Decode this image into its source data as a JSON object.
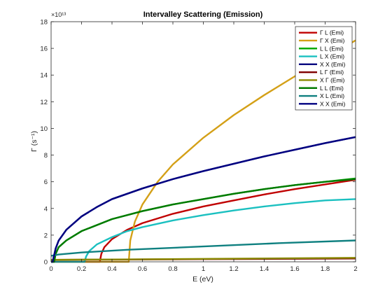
{
  "chart_data": {
    "type": "line",
    "title": "Intervalley Scattering (Emission)",
    "xlabel": "E (eV)",
    "ylabel": "Γ (s⁻¹)",
    "y_exponent_label": "×10¹³",
    "xlim": [
      0,
      2
    ],
    "ylim": [
      0,
      18
    ],
    "x_ticks": [
      0,
      0.2,
      0.4,
      0.6,
      0.8,
      1,
      1.2,
      1.4,
      1.6,
      1.8,
      2
    ],
    "x_tick_labels": [
      "0",
      "0.2",
      "0.4",
      "0.6",
      "0.8",
      "1",
      "1.2",
      "1.4",
      "1.6",
      "1.8",
      "2"
    ],
    "y_ticks": [
      0,
      2,
      4,
      6,
      8,
      10,
      12,
      14,
      16,
      18
    ],
    "y_tick_labels": [
      "0",
      "2",
      "4",
      "6",
      "8",
      "10",
      "12",
      "14",
      "16",
      "18"
    ],
    "grid": false,
    "legend_position": "top-right",
    "series": [
      {
        "name": "Γ L (Emi)",
        "color": "#c00000",
        "points": [
          [
            0,
            0
          ],
          [
            0.3,
            0
          ],
          [
            0.32,
            0
          ],
          [
            0.33,
            0.6
          ],
          [
            0.35,
            1.1
          ],
          [
            0.4,
            1.7
          ],
          [
            0.5,
            2.4
          ],
          [
            0.6,
            2.9
          ],
          [
            0.8,
            3.6
          ],
          [
            1.0,
            4.15
          ],
          [
            1.2,
            4.6
          ],
          [
            1.4,
            5.05
          ],
          [
            1.6,
            5.45
          ],
          [
            1.8,
            5.8
          ],
          [
            2.0,
            6.15
          ]
        ]
      },
      {
        "name": "Γ X (Emi)",
        "color": "#d4a017",
        "points": [
          [
            0,
            0
          ],
          [
            0.5,
            0
          ],
          [
            0.51,
            0
          ],
          [
            0.52,
            1.6
          ],
          [
            0.55,
            3.0
          ],
          [
            0.6,
            4.3
          ],
          [
            0.7,
            6.0
          ],
          [
            0.8,
            7.3
          ],
          [
            1.0,
            9.3
          ],
          [
            1.2,
            11.0
          ],
          [
            1.4,
            12.5
          ],
          [
            1.6,
            13.9
          ],
          [
            1.8,
            15.3
          ],
          [
            2.0,
            16.6
          ]
        ]
      },
      {
        "name": "L L (Emi)",
        "color": "#00aa00",
        "points": [
          [
            0,
            0
          ],
          [
            0.02,
            0
          ],
          [
            0.03,
            0.6
          ],
          [
            0.05,
            1.1
          ],
          [
            0.1,
            1.6
          ],
          [
            0.2,
            2.3
          ],
          [
            0.4,
            3.2
          ],
          [
            0.6,
            3.8
          ],
          [
            0.8,
            4.3
          ],
          [
            1.0,
            4.7
          ],
          [
            1.2,
            5.1
          ],
          [
            1.4,
            5.45
          ],
          [
            1.6,
            5.75
          ],
          [
            1.8,
            6.0
          ],
          [
            2.0,
            6.25
          ]
        ]
      },
      {
        "name": "L X (Emi)",
        "color": "#1bc0c0",
        "points": [
          [
            0,
            0
          ],
          [
            0.2,
            0
          ],
          [
            0.22,
            0
          ],
          [
            0.23,
            0.4
          ],
          [
            0.25,
            0.8
          ],
          [
            0.3,
            1.3
          ],
          [
            0.4,
            1.85
          ],
          [
            0.5,
            2.3
          ],
          [
            0.6,
            2.6
          ],
          [
            0.8,
            3.1
          ],
          [
            1.0,
            3.5
          ],
          [
            1.2,
            3.85
          ],
          [
            1.4,
            4.15
          ],
          [
            1.6,
            4.4
          ],
          [
            1.8,
            4.6
          ],
          [
            2.0,
            4.7
          ]
        ]
      },
      {
        "name": "X X (Emi)",
        "color": "#00007f",
        "points": [
          [
            0,
            0
          ],
          [
            0.01,
            0
          ],
          [
            0.03,
            1.0
          ],
          [
            0.05,
            1.6
          ],
          [
            0.1,
            2.4
          ],
          [
            0.2,
            3.4
          ],
          [
            0.3,
            4.1
          ],
          [
            0.4,
            4.7
          ],
          [
            0.6,
            5.5
          ],
          [
            0.8,
            6.2
          ],
          [
            1.0,
            6.8
          ],
          [
            1.2,
            7.35
          ],
          [
            1.4,
            7.9
          ],
          [
            1.6,
            8.4
          ],
          [
            1.8,
            8.9
          ],
          [
            2.0,
            9.35
          ]
        ]
      },
      {
        "name": "L Γ (Emi)",
        "color": "#7f0000",
        "points": [
          [
            0,
            0.15
          ],
          [
            0.5,
            0.17
          ],
          [
            1.0,
            0.2
          ],
          [
            1.5,
            0.22
          ],
          [
            2.0,
            0.25
          ]
        ]
      },
      {
        "name": "X Γ (Emi)",
        "color": "#8a8a00",
        "points": [
          [
            0,
            0.15
          ],
          [
            0.5,
            0.18
          ],
          [
            1.0,
            0.22
          ],
          [
            1.5,
            0.26
          ],
          [
            2.0,
            0.3
          ]
        ]
      },
      {
        "name": "L L (Emi)",
        "color": "#007a00",
        "points": [
          [
            0,
            0
          ],
          [
            0.02,
            0
          ],
          [
            0.03,
            0.6
          ],
          [
            0.05,
            1.1
          ],
          [
            0.1,
            1.6
          ],
          [
            0.2,
            2.3
          ],
          [
            0.4,
            3.2
          ],
          [
            0.6,
            3.8
          ],
          [
            0.8,
            4.3
          ],
          [
            1.0,
            4.7
          ],
          [
            1.2,
            5.1
          ],
          [
            1.4,
            5.45
          ],
          [
            1.6,
            5.75
          ],
          [
            1.8,
            6.0
          ],
          [
            2.0,
            6.2
          ]
        ]
      },
      {
        "name": "X L (Emi)",
        "color": "#0f8080",
        "points": [
          [
            0,
            0.45
          ],
          [
            0.05,
            0.55
          ],
          [
            0.2,
            0.7
          ],
          [
            0.5,
            0.9
          ],
          [
            1.0,
            1.15
          ],
          [
            1.5,
            1.4
          ],
          [
            2.0,
            1.6
          ]
        ]
      },
      {
        "name": "X X (Emi)",
        "color": "#000080",
        "points": [
          [
            0,
            0
          ],
          [
            0.01,
            0
          ],
          [
            0.03,
            1.0
          ],
          [
            0.05,
            1.6
          ],
          [
            0.1,
            2.4
          ],
          [
            0.2,
            3.4
          ],
          [
            0.3,
            4.1
          ],
          [
            0.4,
            4.7
          ],
          [
            0.6,
            5.5
          ],
          [
            0.8,
            6.2
          ],
          [
            1.0,
            6.8
          ],
          [
            1.2,
            7.35
          ],
          [
            1.4,
            7.9
          ],
          [
            1.6,
            8.4
          ],
          [
            1.8,
            8.9
          ],
          [
            2.0,
            9.35
          ]
        ]
      }
    ]
  }
}
